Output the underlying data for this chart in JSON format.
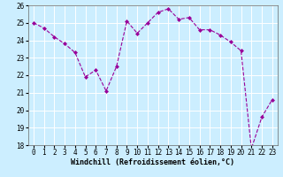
{
  "x": [
    0,
    1,
    2,
    3,
    4,
    5,
    6,
    7,
    8,
    9,
    10,
    11,
    12,
    13,
    14,
    15,
    16,
    17,
    18,
    19,
    20,
    21,
    22,
    23
  ],
  "y": [
    25.0,
    24.7,
    24.2,
    23.8,
    23.3,
    21.9,
    22.3,
    21.1,
    22.5,
    25.1,
    24.4,
    25.0,
    25.6,
    25.8,
    25.2,
    25.3,
    24.6,
    24.6,
    24.3,
    23.9,
    23.4,
    17.8,
    19.6,
    20.6
  ],
  "line_color": "#990099",
  "marker": "D",
  "marker_size": 2.0,
  "bg_color": "#cceeff",
  "grid_color": "#ffffff",
  "xlabel": "Windchill (Refroidissement éolien,°C)",
  "ylim": [
    18,
    26
  ],
  "xlim": [
    -0.5,
    23.5
  ],
  "yticks": [
    18,
    19,
    20,
    21,
    22,
    23,
    24,
    25,
    26
  ],
  "xtick_labels": [
    "0",
    "1",
    "2",
    "3",
    "4",
    "5",
    "6",
    "7",
    "8",
    "9",
    "10",
    "11",
    "12",
    "13",
    "14",
    "15",
    "16",
    "17",
    "18",
    "19",
    "20",
    "21",
    "22",
    "23"
  ],
  "xlabel_fontsize": 6.0,
  "tick_fontsize": 5.5,
  "linewidth": 0.8
}
